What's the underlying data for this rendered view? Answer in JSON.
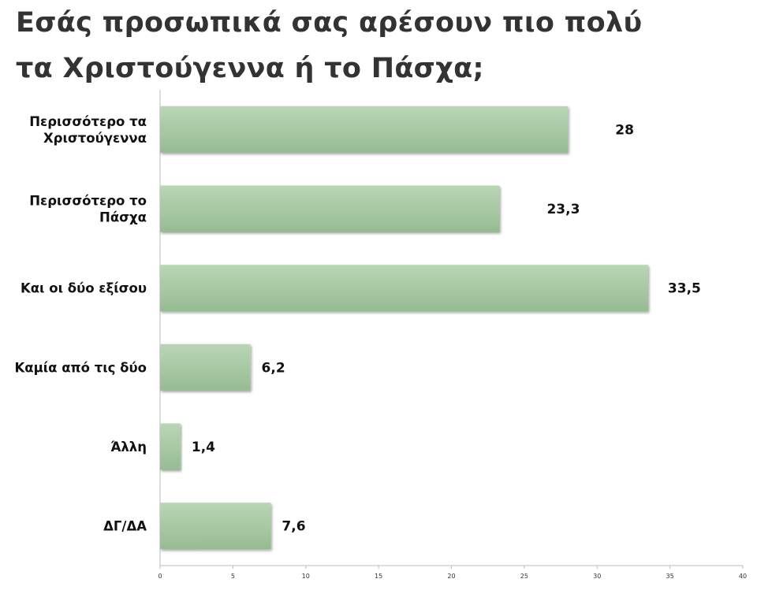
{
  "chart_data": {
    "type": "bar",
    "orientation": "horizontal",
    "title_lines": [
      "Εσάς προσωπικά σας αρέσουν πιο πολύ",
      "τα Χριστούγεννα ή το Πάσχα;"
    ],
    "categories": [
      [
        "Περισσότερο τα",
        "Χριστούγεννα"
      ],
      [
        "Περισσότερο το",
        "Πάσχα"
      ],
      [
        "Και οι δύο εξίσου"
      ],
      [
        "Καμία από τις δύο"
      ],
      [
        "Άλλη"
      ],
      [
        "ΔΓ/ΔΑ"
      ]
    ],
    "values": [
      28,
      23.3,
      33.5,
      6.2,
      1.4,
      7.6
    ],
    "value_labels": [
      "28",
      "23,3",
      "33,5",
      "6,2",
      "1,4",
      "7,6"
    ],
    "xlim": [
      0,
      40
    ],
    "xticks": [
      0,
      5,
      10,
      15,
      20,
      25,
      30,
      35,
      40
    ],
    "grid": false,
    "legend": "none",
    "bar_color": "#a6c8a2",
    "bar_color_dark": "#8fb48b"
  }
}
